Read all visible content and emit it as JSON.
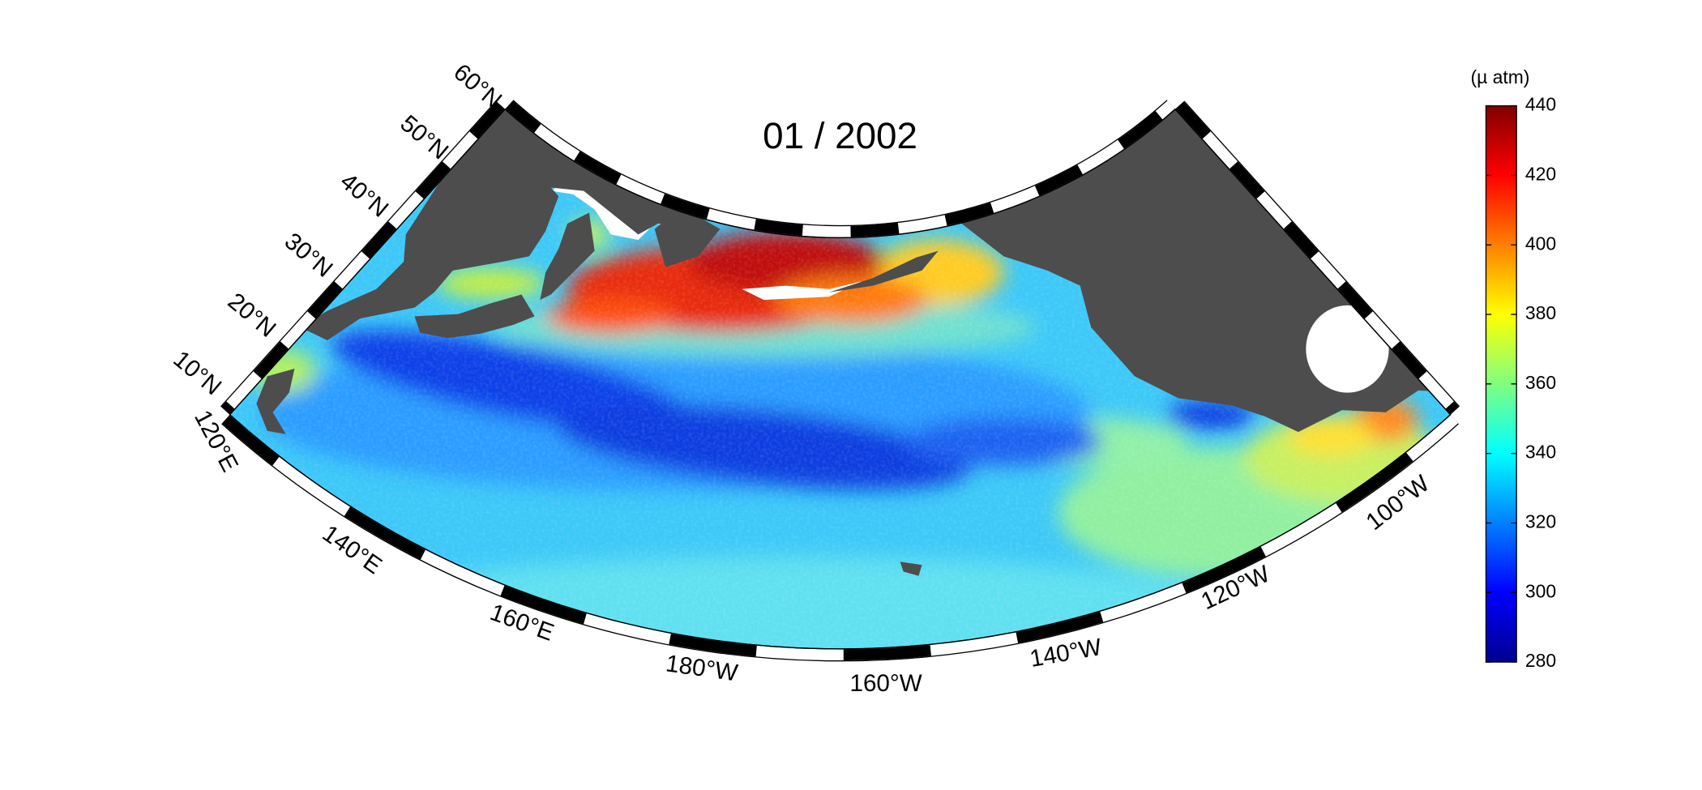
{
  "title": "01 / 2002",
  "latitude_labels": [
    "10°N",
    "20°N",
    "30°N",
    "40°N",
    "50°N",
    "60°N"
  ],
  "longitude_labels": [
    "120°E",
    "140°E",
    "160°E",
    "180°W",
    "160°W",
    "140°W",
    "120°W",
    "100°W"
  ],
  "colorbar": {
    "label": "(µ atm)",
    "range": [
      280,
      440
    ],
    "ticks": [
      280,
      300,
      320,
      340,
      360,
      380,
      400,
      420,
      440
    ]
  }
}
